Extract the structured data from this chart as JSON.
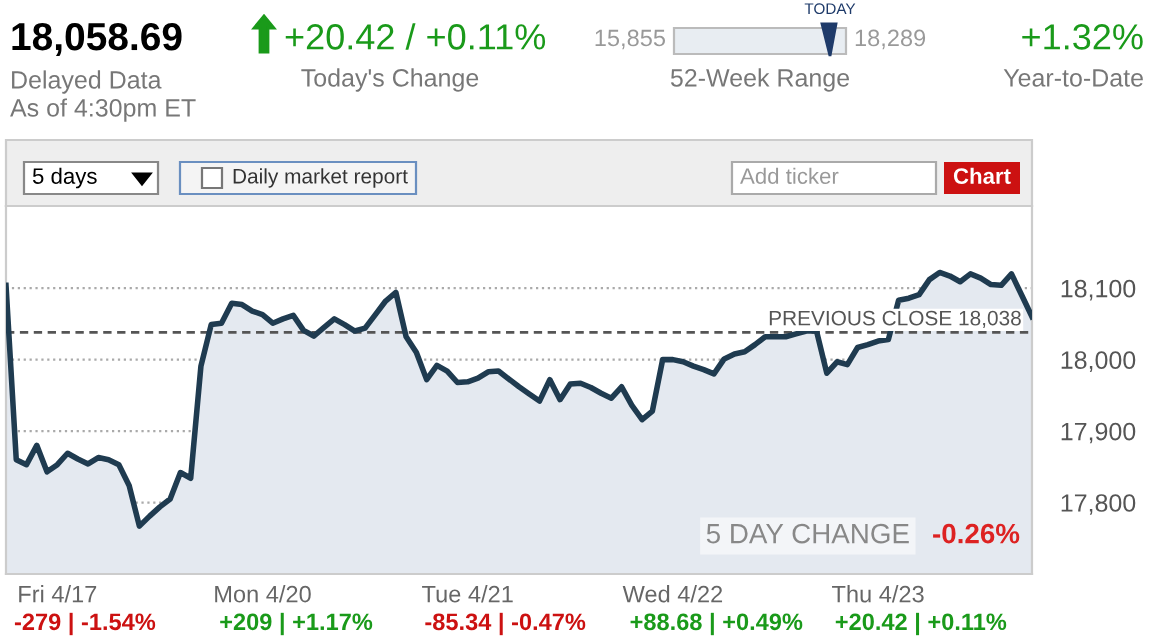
{
  "chart_data": {
    "type": "area",
    "categories": [
      null,
      null,
      null,
      null,
      null,
      "Fri 4/17",
      null,
      null,
      null,
      null,
      null,
      null,
      null,
      null,
      null,
      null,
      null,
      null,
      null,
      null,
      null,
      null,
      null,
      null,
      null,
      "Mon 4/20",
      null,
      null,
      null,
      null,
      null,
      null,
      null,
      null,
      null,
      null,
      null,
      null,
      null,
      null,
      null,
      null,
      null,
      null,
      null,
      "Tue 4/21",
      null,
      null,
      null,
      null,
      null,
      null,
      null,
      null,
      null,
      null,
      null,
      null,
      null,
      null,
      null,
      null,
      null,
      null,
      null,
      "Wed 4/22",
      null,
      null,
      null,
      null,
      null,
      null,
      null,
      null,
      null,
      null,
      null,
      null,
      null,
      null,
      null,
      null,
      null,
      null,
      null,
      "Thu 4/23",
      null,
      null,
      null,
      null,
      null,
      null,
      null,
      null,
      null,
      null,
      null,
      null,
      null,
      null,
      null
    ],
    "series": [
      {
        "color": "#1f3b50",
        "values": [
          18104,
          17860,
          17853,
          17880,
          17843,
          17853,
          17869,
          17861,
          17854,
          17863,
          17860,
          17853,
          17824,
          17767,
          17781,
          17794,
          17805,
          17842,
          17834,
          17991,
          18049,
          18051,
          18079,
          18077,
          18068,
          18063,
          18051,
          18057,
          18062,
          18041,
          18033,
          18045,
          18057,
          18049,
          18040,
          18044,
          18063,
          18082,
          18094,
          18032,
          18010,
          17972,
          17992,
          17984,
          17968,
          17969,
          17974,
          17983,
          17984,
          17973,
          17962,
          17952,
          17942,
          17972,
          17944,
          17966,
          17967,
          17961,
          17953,
          17946,
          17962,
          17936,
          17916,
          17928,
          18000,
          18000,
          17997,
          17991,
          17986,
          17980,
          18001,
          18008,
          18011,
          18021,
          18032,
          18032,
          18032,
          18036,
          18040,
          18040,
          17981,
          17997,
          17993,
          18017,
          18021,
          18026,
          18028,
          18083,
          18086,
          18091,
          18112,
          18122,
          18117,
          18109,
          18120,
          18114,
          18105,
          18104,
          18120,
          18090,
          18060
        ]
      }
    ],
    "ylim": [
      17700,
      18215
    ],
    "yticks": [
      {
        "value": 17800,
        "label": "17,800"
      },
      {
        "value": 17900,
        "label": "17,900"
      },
      {
        "value": 18000,
        "label": "18,000"
      },
      {
        "value": 18100,
        "label": "18,100"
      }
    ],
    "grid": "y",
    "legend": false,
    "ref_lines": [
      {
        "axis": "y",
        "value": 18038,
        "label": "PREVIOUS CLOSE 18,038",
        "color": "#555555",
        "line_style": "dashed"
      }
    ],
    "annotations": [
      "18,058.69",
      "Delayed Data",
      "As of 4:30pm ET",
      "+20.42 / +0.11%",
      "Today's Change",
      "15,855",
      "18,289",
      "TODAY",
      "52-Week Range",
      "+1.32%",
      "Year-to-Date",
      "5 days",
      "Daily market report",
      "Add ticker",
      "Chart",
      "5 DAY CHANGE",
      "-0.26%",
      "-279 | -1.54%",
      "+209 | +1.17%",
      "-85.34 | -0.47%",
      "+88.68 | +0.49%",
      "+20.42 | +0.11%"
    ]
  }
}
